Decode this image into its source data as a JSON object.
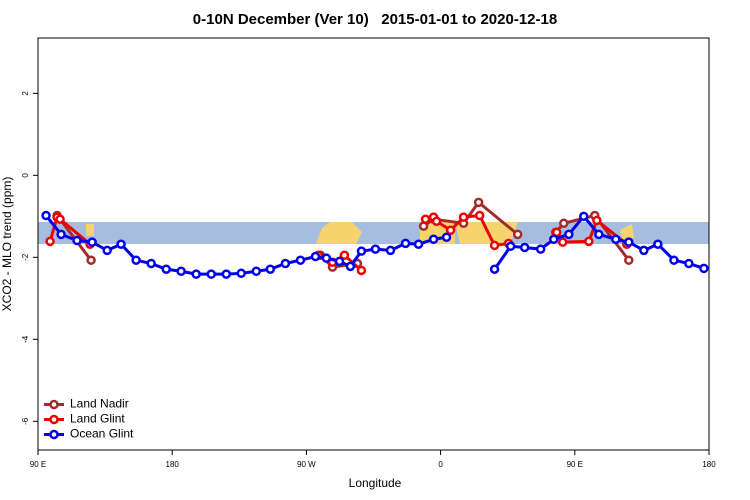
{
  "chart_data": {
    "type": "line",
    "title": "0-10N December (Ver 10)   2015-01-01 to 2020-12-18",
    "x_label": "Longitude",
    "y_label": "XCO2 - MLO trend (ppm)",
    "xlim": [
      90,
      540
    ],
    "ylim": [
      -6.7,
      3.35
    ],
    "xticks": [
      {
        "value": 90,
        "label": "90 E"
      },
      180,
      {
        "value": 270,
        "label": "90 W"
      },
      {
        "value": 360,
        "label": "0"
      },
      {
        "value": 450,
        "label": "90 E"
      },
      {
        "value": 540,
        "label": "180"
      }
    ],
    "yticks": [
      -6,
      -4,
      -2,
      0,
      2
    ],
    "legend": "bottom-left",
    "series": [
      {
        "name": "Land Nadir",
        "color": "#a52a2a",
        "x": [
          102.8,
          125.6,
          null,
          279.4,
          287.5,
          304.2,
          null,
          348.6,
          355.3,
          375.4,
          385.5,
          411.7,
          null,
          437.2,
          442.6,
          463.4,
          486.2
        ],
        "values": [
          -0.98,
          -2.07,
          null,
          -1.95,
          -2.24,
          -2.15,
          null,
          -1.24,
          -1.07,
          -1.17,
          -0.66,
          -1.44,
          null,
          -1.39,
          -1.17,
          -0.98,
          -2.07
        ]
      },
      {
        "name": "Land Glint",
        "color": "#ee0000",
        "x": [
          98.1,
          102.8,
          104.8,
          124.9,
          null,
          278.0,
          287.5,
          295.5,
          306.9,
          null,
          349.9,
          355.3,
          357.3,
          366.7,
          375.4,
          386.2,
          396.2,
          405.6,
          null,
          437.9,
          441.9,
          459.4,
          464.8,
          484.9
        ],
        "values": [
          -1.61,
          -1.02,
          -1.07,
          -1.68,
          null,
          -1.95,
          -2.12,
          -1.95,
          -2.32,
          null,
          -1.07,
          -1.02,
          -1.12,
          -1.34,
          -1.02,
          -0.98,
          -1.71,
          -1.66,
          null,
          -1.39,
          -1.63,
          -1.61,
          -1.1,
          -1.68
        ]
      },
      {
        "name": "Ocean Glint",
        "color": "#0000ee",
        "x": [
          95.4,
          105.5,
          116.2,
          126.3,
          136.4,
          145.7,
          155.8,
          165.9,
          176.0,
          186.0,
          196.1,
          206.2,
          216.3,
          226.3,
          236.4,
          245.8,
          255.9,
          266.0,
          276.1,
          283.4,
          292.2,
          299.5,
          306.9,
          316.3,
          326.4,
          336.5,
          345.2,
          355.3,
          364.0,
          null,
          396.2,
          407.0,
          416.4,
          427.1,
          435.9,
          446.0,
          456.0,
          466.1,
          477.5,
          486.2,
          496.3,
          505.7,
          516.5,
          526.5,
          536.6
        ],
        "values": [
          -0.98,
          -1.44,
          -1.59,
          -1.63,
          -1.83,
          -1.68,
          -2.07,
          -2.15,
          -2.29,
          -2.34,
          -2.41,
          -2.41,
          -2.41,
          -2.39,
          -2.34,
          -2.29,
          -2.15,
          -2.07,
          -1.98,
          -2.02,
          -2.1,
          -2.22,
          -1.85,
          -1.8,
          -1.83,
          -1.66,
          -1.68,
          -1.56,
          -1.51,
          null,
          -2.29,
          -1.73,
          -1.76,
          -1.8,
          -1.56,
          -1.44,
          -1.0,
          -1.44,
          -1.56,
          -1.63,
          -1.83,
          -1.68,
          -2.07,
          -2.15,
          -2.27
        ]
      }
    ]
  }
}
